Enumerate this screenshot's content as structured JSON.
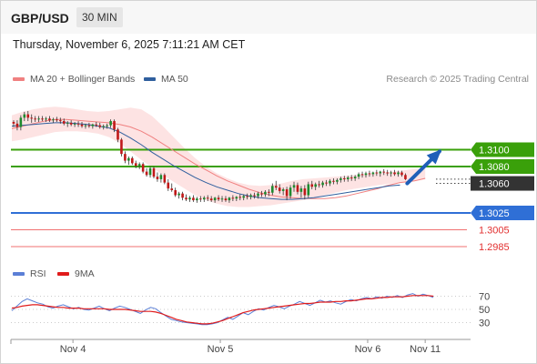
{
  "header": {
    "symbol": "GBP/USD",
    "timeframe": "30 MIN"
  },
  "timestamp": "Thursday, November 6, 2025 7:11:21 AM CET",
  "legend": {
    "ma20": {
      "label": "MA 20 + Bollinger Bands",
      "color": "#f08080"
    },
    "ma50": {
      "label": "MA 50",
      "color": "#2f5f9e"
    }
  },
  "credit": "Research © 2025 Trading Central",
  "rsi_legend": {
    "rsi": {
      "label": "RSI",
      "color": "#5b7fd6"
    },
    "ma": {
      "label": "9MA",
      "color": "#e01b1b"
    }
  },
  "chart_data": {
    "type": "candlestick",
    "price_range": [
      1.2972,
      1.316
    ],
    "x_range": [
      0,
      118
    ],
    "x_ticks": [
      {
        "label": "Nov 4",
        "x": 17
      },
      {
        "label": "Nov 5",
        "x": 58
      },
      {
        "label": "Nov 6",
        "x": 99
      },
      {
        "label": "Nov 11",
        "x": 115
      }
    ],
    "ohlc_series": "GBP/USD 30 min",
    "candles": [
      [
        1.3133,
        1.3135,
        1.3127,
        1.3131
      ],
      [
        1.3131,
        1.3135,
        1.3123,
        1.3127
      ],
      [
        1.3127,
        1.3141,
        1.3123,
        1.3138
      ],
      [
        1.3138,
        1.3145,
        1.3134,
        1.3142
      ],
      [
        1.3142,
        1.3146,
        1.3134,
        1.3138
      ],
      [
        1.3138,
        1.3142,
        1.3132,
        1.3137
      ],
      [
        1.3137,
        1.314,
        1.3133,
        1.3136
      ],
      [
        1.3136,
        1.314,
        1.3133,
        1.3137
      ],
      [
        1.3137,
        1.314,
        1.3134,
        1.3136
      ],
      [
        1.3136,
        1.3139,
        1.3133,
        1.3137
      ],
      [
        1.3137,
        1.314,
        1.3133,
        1.3135
      ],
      [
        1.3135,
        1.3138,
        1.3132,
        1.3136
      ],
      [
        1.3136,
        1.3139,
        1.3133,
        1.3135
      ],
      [
        1.3135,
        1.3138,
        1.3131,
        1.3134
      ],
      [
        1.3134,
        1.3137,
        1.3129,
        1.3131
      ],
      [
        1.3131,
        1.3134,
        1.3127,
        1.3132
      ],
      [
        1.3132,
        1.3135,
        1.3128,
        1.313
      ],
      [
        1.313,
        1.3133,
        1.3127,
        1.3131
      ],
      [
        1.3131,
        1.3134,
        1.3127,
        1.313
      ],
      [
        1.313,
        1.3133,
        1.3126,
        1.3128
      ],
      [
        1.3128,
        1.3131,
        1.3125,
        1.3129
      ],
      [
        1.3129,
        1.3132,
        1.3126,
        1.3128
      ],
      [
        1.3128,
        1.3131,
        1.3125,
        1.313
      ],
      [
        1.313,
        1.3133,
        1.3127,
        1.3129
      ],
      [
        1.3129,
        1.3132,
        1.3125,
        1.3127
      ],
      [
        1.3127,
        1.313,
        1.3124,
        1.3128
      ],
      [
        1.3128,
        1.3131,
        1.3125,
        1.3129
      ],
      [
        1.3129,
        1.3136,
        1.3126,
        1.3134
      ],
      [
        1.3134,
        1.3136,
        1.3121,
        1.3124
      ],
      [
        1.3124,
        1.3126,
        1.3109,
        1.3112
      ],
      [
        1.3112,
        1.3114,
        1.3092,
        1.3095
      ],
      [
        1.3095,
        1.3098,
        1.3084,
        1.3087
      ],
      [
        1.3087,
        1.3092,
        1.3082,
        1.309
      ],
      [
        1.309,
        1.3092,
        1.3082,
        1.3084
      ],
      [
        1.3084,
        1.3087,
        1.3078,
        1.3081
      ],
      [
        1.3081,
        1.3085,
        1.3077,
        1.3083
      ],
      [
        1.3083,
        1.3085,
        1.3072,
        1.3074
      ],
      [
        1.3074,
        1.3078,
        1.3068,
        1.307
      ],
      [
        1.307,
        1.308,
        1.3067,
        1.3078
      ],
      [
        1.3078,
        1.308,
        1.3066,
        1.3068
      ],
      [
        1.3068,
        1.3073,
        1.3062,
        1.3065
      ],
      [
        1.3065,
        1.3072,
        1.3061,
        1.307
      ],
      [
        1.307,
        1.3072,
        1.3059,
        1.3061
      ],
      [
        1.3061,
        1.3065,
        1.3051,
        1.3054
      ],
      [
        1.3054,
        1.306,
        1.305,
        1.3052
      ],
      [
        1.3052,
        1.3055,
        1.3044,
        1.3046
      ],
      [
        1.3046,
        1.305,
        1.3042,
        1.3048
      ],
      [
        1.3048,
        1.305,
        1.304,
        1.3043
      ],
      [
        1.3043,
        1.3047,
        1.3039,
        1.3041
      ],
      [
        1.3041,
        1.3045,
        1.3038,
        1.3043
      ],
      [
        1.3043,
        1.3046,
        1.3038,
        1.304
      ],
      [
        1.304,
        1.3044,
        1.3037,
        1.3042
      ],
      [
        1.3042,
        1.3045,
        1.3038,
        1.3041
      ],
      [
        1.3041,
        1.3045,
        1.3038,
        1.3043
      ],
      [
        1.3043,
        1.3046,
        1.3039,
        1.3042
      ],
      [
        1.3042,
        1.3045,
        1.3038,
        1.304
      ],
      [
        1.304,
        1.3044,
        1.3037,
        1.3043
      ],
      [
        1.3043,
        1.3046,
        1.3039,
        1.3041
      ],
      [
        1.3041,
        1.3045,
        1.3038,
        1.3042
      ],
      [
        1.3042,
        1.3045,
        1.3038,
        1.304
      ],
      [
        1.304,
        1.3044,
        1.3037,
        1.3043
      ],
      [
        1.3043,
        1.3046,
        1.3039,
        1.3042
      ],
      [
        1.3042,
        1.3045,
        1.3039,
        1.3044
      ],
      [
        1.3044,
        1.3047,
        1.304,
        1.3043
      ],
      [
        1.3043,
        1.3047,
        1.304,
        1.3045
      ],
      [
        1.3045,
        1.3048,
        1.3041,
        1.3044
      ],
      [
        1.3044,
        1.3048,
        1.3041,
        1.3046
      ],
      [
        1.3046,
        1.3049,
        1.3042,
        1.3045
      ],
      [
        1.3045,
        1.305,
        1.3042,
        1.3048
      ],
      [
        1.3048,
        1.3051,
        1.3044,
        1.3047
      ],
      [
        1.3047,
        1.3052,
        1.3044,
        1.305
      ],
      [
        1.305,
        1.3053,
        1.3045,
        1.3049
      ],
      [
        1.3049,
        1.306,
        1.3046,
        1.3057
      ],
      [
        1.3057,
        1.3063,
        1.3052,
        1.3055
      ],
      [
        1.3055,
        1.3059,
        1.3048,
        1.3051
      ],
      [
        1.3051,
        1.3055,
        1.3046,
        1.3053
      ],
      [
        1.3053,
        1.3056,
        1.304,
        1.3045
      ],
      [
        1.3045,
        1.3058,
        1.3042,
        1.3055
      ],
      [
        1.3055,
        1.3062,
        1.305,
        1.3058
      ],
      [
        1.3058,
        1.3061,
        1.3047,
        1.305
      ],
      [
        1.305,
        1.3057,
        1.3043,
        1.3054
      ],
      [
        1.3054,
        1.3058,
        1.3041,
        1.3046
      ],
      [
        1.3046,
        1.3062,
        1.3043,
        1.3059
      ],
      [
        1.3059,
        1.3063,
        1.3053,
        1.3056
      ],
      [
        1.3056,
        1.3061,
        1.3052,
        1.3059
      ],
      [
        1.3059,
        1.3063,
        1.3055,
        1.3058
      ],
      [
        1.3058,
        1.3063,
        1.3055,
        1.3061
      ],
      [
        1.3061,
        1.3064,
        1.3057,
        1.306
      ],
      [
        1.306,
        1.3065,
        1.3057,
        1.3063
      ],
      [
        1.3063,
        1.3066,
        1.3059,
        1.3062
      ],
      [
        1.3062,
        1.3066,
        1.3059,
        1.3064
      ],
      [
        1.3064,
        1.3068,
        1.3061,
        1.3066
      ],
      [
        1.3066,
        1.3069,
        1.3062,
        1.3065
      ],
      [
        1.3065,
        1.3069,
        1.3062,
        1.3067
      ],
      [
        1.3067,
        1.307,
        1.3063,
        1.3066
      ],
      [
        1.3066,
        1.307,
        1.3063,
        1.3068
      ],
      [
        1.3068,
        1.3073,
        1.3065,
        1.3071
      ],
      [
        1.3071,
        1.3074,
        1.3067,
        1.307
      ],
      [
        1.307,
        1.3074,
        1.3067,
        1.3072
      ],
      [
        1.3072,
        1.3075,
        1.3068,
        1.3071
      ],
      [
        1.3071,
        1.3074,
        1.3068,
        1.3073
      ],
      [
        1.3073,
        1.3076,
        1.3069,
        1.3072
      ],
      [
        1.3072,
        1.3075,
        1.3068,
        1.3074
      ],
      [
        1.3074,
        1.3077,
        1.307,
        1.3073
      ],
      [
        1.3073,
        1.3076,
        1.3069,
        1.3072
      ],
      [
        1.3072,
        1.3075,
        1.3068,
        1.3073
      ],
      [
        1.3073,
        1.3076,
        1.3069,
        1.3071
      ],
      [
        1.3071,
        1.3075,
        1.3068,
        1.3073
      ],
      [
        1.3073,
        1.3075,
        1.3068,
        1.307
      ],
      [
        1.307,
        1.3072,
        1.3064,
        1.3065
      ]
    ],
    "ma20": [
      1.3125,
      1.3128,
      1.3131,
      1.3134,
      1.3136,
      1.3136,
      1.3135,
      1.3134,
      1.3133,
      1.3132,
      1.313,
      1.3127,
      1.3122,
      1.3115,
      1.3107,
      1.3099,
      1.3091,
      1.3083,
      1.3076,
      1.3069,
      1.3063,
      1.3058,
      1.3053,
      1.3049,
      1.3046,
      1.3044,
      1.3043,
      1.3042,
      1.3042,
      1.3042,
      1.3043,
      1.3045,
      1.3048,
      1.3051,
      1.3054,
      1.3057,
      1.3059,
      1.3061,
      1.3062,
      1.3063,
      1.3064,
      1.3066
    ],
    "ma20_x": [
      0,
      3,
      6,
      9,
      12,
      15,
      18,
      21,
      24,
      27,
      30,
      33,
      36,
      39,
      42,
      45,
      48,
      51,
      54,
      57,
      60,
      63,
      66,
      69,
      72,
      75,
      78,
      81,
      84,
      87,
      90,
      93,
      96,
      99,
      102,
      104,
      106,
      108,
      110,
      112,
      113,
      115
    ],
    "boll_upper": [
      1.3141,
      1.3145,
      1.3148,
      1.315,
      1.3151,
      1.315,
      1.3148,
      1.3146,
      1.3145,
      1.3146,
      1.3148,
      1.315,
      1.3148,
      1.314,
      1.3128,
      1.3115,
      1.3102,
      1.309,
      1.308,
      1.3072,
      1.3066,
      1.3061,
      1.3058,
      1.3057,
      1.3058,
      1.306,
      1.3063,
      1.3065,
      1.3066,
      1.3067,
      1.3068,
      1.3069,
      1.307,
      1.3071,
      1.3072,
      1.3073,
      1.3074,
      1.3075,
      1.3076,
      1.3077,
      1.3077,
      1.3077
    ],
    "boll_lower": [
      1.311,
      1.3112,
      1.3115,
      1.3118,
      1.3121,
      1.3122,
      1.3122,
      1.3121,
      1.3119,
      1.3115,
      1.3108,
      1.3098,
      1.3088,
      1.3079,
      1.307,
      1.3062,
      1.3054,
      1.3046,
      1.304,
      1.3036,
      1.3033,
      1.3032,
      1.3032,
      1.3033,
      1.3034,
      1.3036,
      1.3038,
      1.304,
      1.3043,
      1.3046,
      1.3049,
      1.3052,
      1.3054,
      1.3056,
      1.3058,
      1.3059,
      1.306,
      1.3061,
      1.3062,
      1.3063,
      1.3064,
      1.3065
    ],
    "ma50": [
      1.3128,
      1.3129,
      1.313,
      1.3131,
      1.3132,
      1.3132,
      1.3131,
      1.313,
      1.3128,
      1.3126,
      1.3121,
      1.3114,
      1.3106,
      1.3097,
      1.3089,
      1.3081,
      1.3074,
      1.3067,
      1.3061,
      1.3056,
      1.3052,
      1.3048,
      1.3045,
      1.3043,
      1.3042,
      1.3041,
      1.3041,
      1.3042,
      1.3043,
      1.3045,
      1.3047,
      1.3049,
      1.3051,
      1.3053,
      1.3055,
      1.3057,
      1.3058
    ],
    "ma50_x": [
      0,
      3,
      6,
      9,
      12,
      15,
      18,
      21,
      24,
      27,
      30,
      33,
      36,
      39,
      42,
      45,
      48,
      51,
      54,
      57,
      60,
      63,
      66,
      69,
      72,
      75,
      78,
      81,
      84,
      87,
      90,
      93,
      96,
      99,
      102,
      105,
      108
    ],
    "levels": [
      {
        "value": 1.31,
        "label": "1.3100",
        "color": "#3aa00a",
        "style": "solid"
      },
      {
        "value": 1.308,
        "label": "1.3080",
        "color": "#3aa00a",
        "style": "solid"
      },
      {
        "value": 1.306,
        "label": "1.3060",
        "color": "#333333",
        "style": "current"
      },
      {
        "value": 1.3025,
        "label": "1.3025",
        "color": "#2f6fd6",
        "style": "solid"
      },
      {
        "value": 1.3005,
        "label": "1.3005",
        "color": "#f07070",
        "style": "thin"
      },
      {
        "value": 1.2985,
        "label": "1.2985",
        "color": "#f07070",
        "style": "thin"
      }
    ],
    "arrow": {
      "from": [
        110,
        1.306
      ],
      "to": [
        119,
        1.3098
      ],
      "color": "#1f5fb8"
    },
    "rsi": {
      "range": [
        10,
        90
      ],
      "ticks": [
        "70",
        "50",
        "30"
      ],
      "tick_values": [
        70,
        50,
        30
      ],
      "rsi_values": [
        48,
        55,
        62,
        66,
        63,
        60,
        58,
        54,
        52,
        55,
        57,
        54,
        51,
        53,
        50,
        49,
        52,
        55,
        51,
        48,
        52,
        55,
        53,
        50,
        47,
        44,
        49,
        53,
        51,
        45,
        40,
        35,
        33,
        31,
        30,
        29,
        28,
        27,
        27,
        28,
        30,
        34,
        38,
        35,
        40,
        45,
        42,
        47,
        51,
        49,
        53,
        56,
        54,
        51,
        55,
        58,
        62,
        59,
        56,
        60,
        64,
        61,
        63,
        60,
        58,
        62,
        65,
        63,
        66,
        68,
        66,
        69,
        67,
        70,
        68,
        71,
        68,
        72,
        74,
        70,
        73,
        71,
        68
      ],
      "rsi_x": [
        0,
        1,
        2,
        3,
        4,
        5,
        6,
        7,
        8,
        9,
        10,
        11,
        12,
        13,
        14,
        15,
        16,
        17,
        18,
        19,
        20,
        21,
        22,
        23,
        24,
        25,
        26,
        27,
        28,
        29,
        30,
        31,
        32,
        33,
        34,
        35,
        36,
        37,
        38,
        39,
        40,
        41,
        42,
        43,
        44,
        45,
        46,
        47,
        48,
        49,
        50,
        51,
        52,
        53,
        54,
        55,
        56,
        57,
        58,
        59,
        60,
        61,
        62,
        63,
        64,
        65,
        66,
        67,
        68,
        69,
        70,
        71,
        72,
        73,
        74,
        75,
        76,
        77,
        78,
        79,
        80,
        81,
        82
      ],
      "ma_values": [
        52,
        53,
        55,
        56,
        57,
        57,
        56,
        55,
        54,
        53,
        53,
        52,
        52,
        52,
        51,
        51,
        51,
        51,
        51,
        50,
        50,
        50,
        50,
        49,
        48,
        47,
        47,
        47,
        46,
        44,
        41,
        38,
        35,
        33,
        31,
        30,
        29,
        28,
        28,
        29,
        31,
        33,
        36,
        39,
        42,
        45,
        47,
        49,
        50,
        51,
        52,
        53,
        54,
        55,
        56,
        57,
        58,
        59,
        59,
        60,
        61,
        61,
        61,
        62,
        62,
        63,
        63,
        64,
        65,
        66,
        66,
        67,
        68,
        68,
        69,
        69,
        69,
        70,
        71,
        71,
        71,
        71,
        70
      ],
      "x_scale": 118
    }
  }
}
